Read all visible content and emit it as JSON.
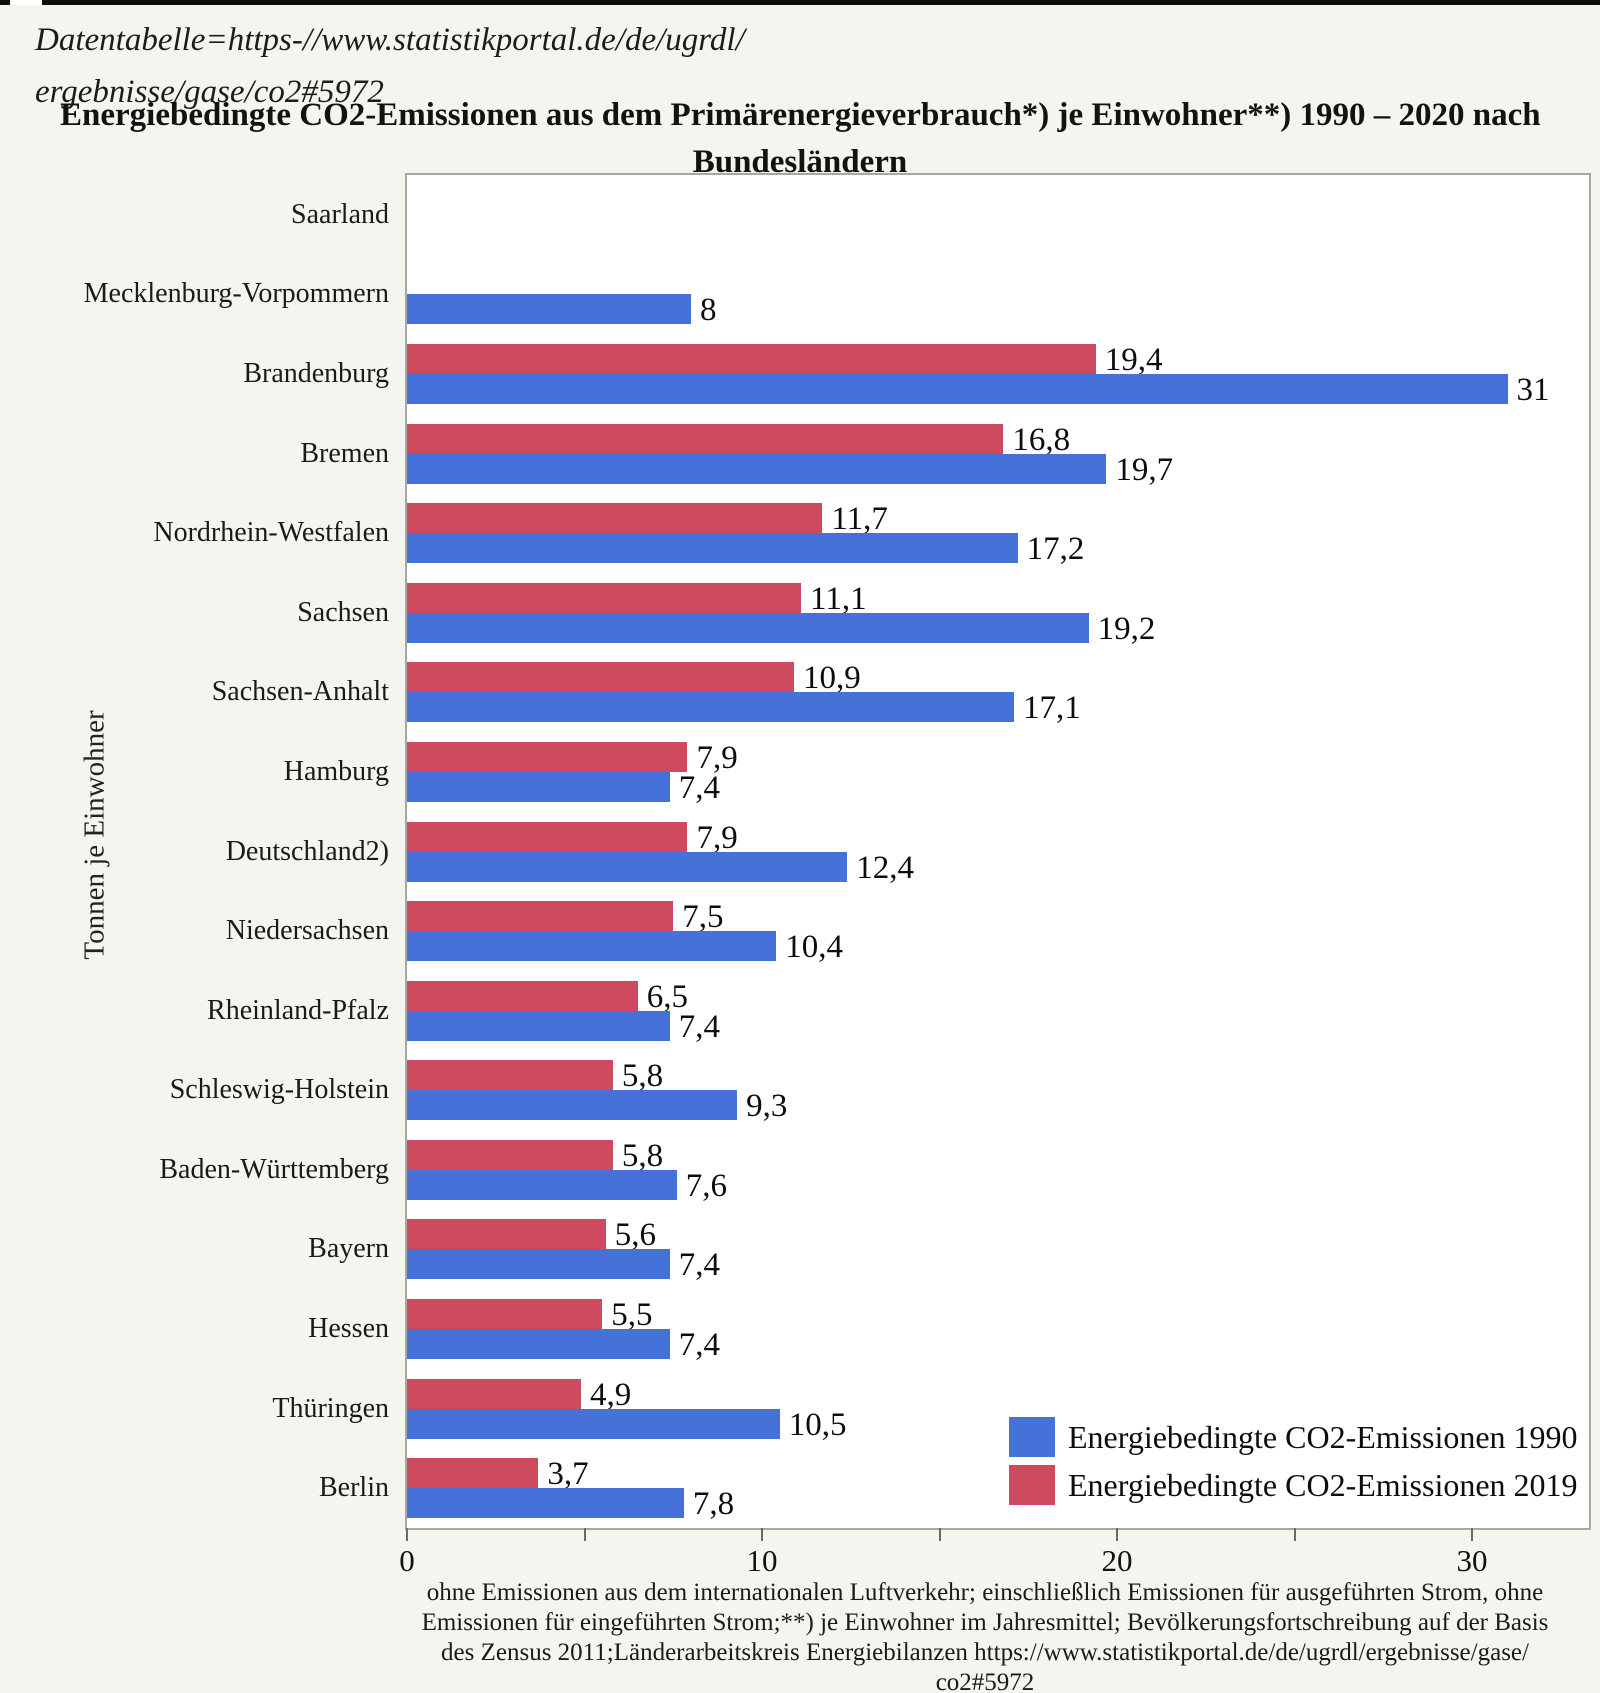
{
  "page": {
    "link_line1": "Datentabelle=https-//www.statistikportal.de/de/ugrdl/",
    "link_line2": "ergebnisse/gase/co2#5972",
    "title_line1": "Energiebedingte CO2-Emissionen aus dem Primärenergieverbrauch*) je Einwohner**)  1990 – 2020 nach",
    "title_line2": "Bundesländern"
  },
  "chart_data": {
    "type": "bar",
    "orientation": "horizontal",
    "title": "Energiebedingte CO2-Emissionen aus dem Primärenergieverbrauch*) je Einwohner**) 1990 – 2020 nach Bundesländern",
    "ylabel": "Tonnen je Einwohner",
    "xlabel": "",
    "xlim": [
      0,
      33.3
    ],
    "grid": false,
    "legend_position": "bottom-right-inside",
    "categories": [
      "Saarland",
      "Mecklenburg-Vorpommern",
      "Brandenburg",
      "Bremen",
      "Nordrhein-Westfalen",
      "Sachsen",
      "Sachsen-Anhalt",
      "Hamburg",
      "Deutschland2)",
      "Niedersachsen",
      "Rheinland-Pfalz",
      "Schleswig-Holstein",
      "Baden-Württemberg",
      "Bayern",
      "Hessen",
      "Thüringen",
      "Berlin"
    ],
    "series": [
      {
        "name": "Energiebedingte CO2-Emissionen 1990",
        "year": "1990",
        "color": "#4571d8",
        "values": [
          null,
          8,
          31,
          19.7,
          17.2,
          19.2,
          17.1,
          7.4,
          12.4,
          10.4,
          7.4,
          9.3,
          7.6,
          7.4,
          7.4,
          10.5,
          7.8
        ],
        "value_labels": [
          "",
          "8",
          "31",
          "19,7",
          "17,2",
          "19,2",
          "17,1",
          "7,4",
          "12,4",
          "10,4",
          "7,4",
          "9,3",
          "7,6",
          "7,4",
          "7,4",
          "10,5",
          "7,8"
        ]
      },
      {
        "name": "Energiebedingte CO2-Emissionen 2019",
        "year": "2019",
        "color": "#cd4a5f",
        "values": [
          null,
          null,
          19.4,
          16.8,
          11.7,
          11.1,
          10.9,
          7.9,
          7.9,
          7.5,
          6.5,
          5.8,
          5.8,
          5.6,
          5.5,
          4.9,
          3.7
        ],
        "value_labels": [
          "",
          "",
          "19,4",
          "16,8",
          "11,7",
          "11,1",
          "10,9",
          "7,9",
          "7,9",
          "7,5",
          "6,5",
          "5,8",
          "5,8",
          "5,6",
          "5,5",
          "4,9",
          "3,7"
        ]
      }
    ],
    "x_axis": {
      "tick_values": [
        0,
        5,
        10,
        15,
        20,
        25,
        30
      ],
      "tick_labels": [
        "0",
        "",
        "10",
        "",
        "20",
        "",
        "30"
      ]
    }
  },
  "footnote": {
    "lines": [
      "ohne Emissionen aus dem internationalen Luftverkehr; einschließlich Emissionen für ausgeführten Strom, ohne",
      "Emissionen für eingeführten Strom;**) je Einwohner im Jahresmittel; Bevölkerungsfortschreibung auf der Basis",
      "des Zensus 2011;Länderarbeitskreis Energiebilanzen https://www.statistikportal.de/de/ugrdl/ergebnisse/gase/",
      "co2#5972"
    ]
  }
}
